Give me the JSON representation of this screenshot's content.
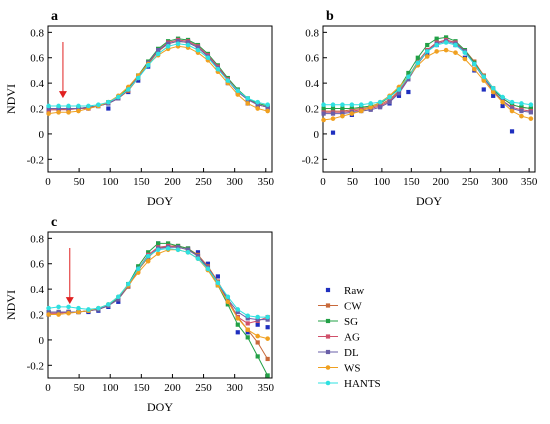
{
  "chart_data": [
    {
      "type": "line",
      "panel": "a",
      "xlabel": "DOY",
      "ylabel": "NDVI",
      "xlim": [
        0,
        360
      ],
      "ylim": [
        -0.3,
        0.85
      ],
      "xticks": [
        0,
        50,
        100,
        150,
        200,
        250,
        300,
        350
      ],
      "yticks": [
        -0.2,
        0,
        0.2,
        0.4,
        0.6,
        0.8
      ],
      "ytick_labels": [
        "-0.2",
        "0",
        "0.2",
        "0.4",
        "0.6",
        "0.8"
      ],
      "arrow_x": 24,
      "x": [
        1,
        17,
        33,
        49,
        65,
        81,
        97,
        113,
        129,
        145,
        161,
        177,
        193,
        209,
        225,
        241,
        257,
        273,
        289,
        305,
        321,
        337,
        353
      ],
      "series": [
        {
          "name": "Raw",
          "color": "#1f2fbf",
          "marker": "square",
          "line": false,
          "values": [
            0.18,
            0.2,
            0.19,
            0.21,
            0.2,
            0.22,
            0.2,
            0.28,
            0.33,
            0.42,
            0.53,
            0.65,
            0.71,
            0.74,
            0.73,
            0.69,
            0.62,
            0.52,
            0.4,
            0.32,
            0.24,
            0.22,
            0.2
          ]
        },
        {
          "name": "CW",
          "color": "#c8693a",
          "marker": "square",
          "line": true,
          "values": [
            0.19,
            0.19,
            0.2,
            0.2,
            0.21,
            0.22,
            0.24,
            0.28,
            0.34,
            0.44,
            0.55,
            0.65,
            0.71,
            0.73,
            0.72,
            0.68,
            0.61,
            0.52,
            0.43,
            0.34,
            0.27,
            0.23,
            0.21
          ]
        },
        {
          "name": "SG",
          "color": "#22a046",
          "marker": "square",
          "line": true,
          "values": [
            0.2,
            0.2,
            0.2,
            0.2,
            0.21,
            0.22,
            0.25,
            0.29,
            0.36,
            0.46,
            0.57,
            0.67,
            0.73,
            0.75,
            0.74,
            0.7,
            0.63,
            0.54,
            0.44,
            0.35,
            0.28,
            0.24,
            0.22
          ]
        },
        {
          "name": "AG",
          "color": "#d0506a",
          "marker": "square",
          "line": true,
          "values": [
            0.19,
            0.19,
            0.19,
            0.2,
            0.2,
            0.22,
            0.24,
            0.28,
            0.35,
            0.45,
            0.56,
            0.66,
            0.72,
            0.74,
            0.73,
            0.69,
            0.62,
            0.53,
            0.43,
            0.34,
            0.27,
            0.23,
            0.21
          ]
        },
        {
          "name": "DL",
          "color": "#6a5fa8",
          "marker": "square",
          "line": true,
          "values": [
            0.2,
            0.2,
            0.2,
            0.2,
            0.21,
            0.22,
            0.24,
            0.28,
            0.35,
            0.45,
            0.56,
            0.66,
            0.71,
            0.73,
            0.72,
            0.68,
            0.61,
            0.52,
            0.42,
            0.33,
            0.27,
            0.23,
            0.21
          ]
        },
        {
          "name": "WS",
          "color": "#f0a020",
          "marker": "circle",
          "line": true,
          "values": [
            0.16,
            0.17,
            0.17,
            0.18,
            0.2,
            0.22,
            0.25,
            0.3,
            0.37,
            0.46,
            0.55,
            0.62,
            0.67,
            0.69,
            0.68,
            0.64,
            0.58,
            0.49,
            0.4,
            0.31,
            0.24,
            0.2,
            0.18
          ]
        },
        {
          "name": "HANTS",
          "color": "#2fe0e0",
          "marker": "circle",
          "line": true,
          "values": [
            0.22,
            0.22,
            0.22,
            0.22,
            0.22,
            0.23,
            0.25,
            0.29,
            0.35,
            0.44,
            0.54,
            0.63,
            0.69,
            0.71,
            0.7,
            0.66,
            0.6,
            0.51,
            0.42,
            0.34,
            0.28,
            0.25,
            0.23
          ]
        }
      ]
    },
    {
      "type": "line",
      "panel": "b",
      "xlabel": "DOY",
      "ylabel": "",
      "xlim": [
        0,
        360
      ],
      "ylim": [
        -0.3,
        0.85
      ],
      "xticks": [
        0,
        50,
        100,
        150,
        200,
        250,
        300,
        350
      ],
      "yticks": [
        -0.2,
        0,
        0.2,
        0.4,
        0.6,
        0.8
      ],
      "ytick_labels": [
        "-0.2",
        "0",
        "0.2",
        "0.4",
        "0.6",
        "0.8"
      ],
      "x": [
        1,
        17,
        33,
        49,
        65,
        81,
        97,
        113,
        129,
        145,
        161,
        177,
        193,
        209,
        225,
        241,
        257,
        273,
        289,
        305,
        321,
        337,
        353
      ],
      "series": [
        {
          "name": "Raw",
          "color": "#1f2fbf",
          "marker": "square",
          "line": false,
          "values": [
            0.18,
            0.01,
            0.18,
            0.15,
            0.2,
            0.2,
            0.22,
            0.24,
            0.3,
            0.33,
            0.55,
            0.62,
            0.7,
            0.73,
            0.7,
            0.6,
            0.5,
            0.35,
            0.3,
            0.22,
            0.02,
            0.2,
            0.19
          ]
        },
        {
          "name": "CW",
          "color": "#c8693a",
          "marker": "square",
          "line": true,
          "values": [
            0.18,
            0.18,
            0.18,
            0.19,
            0.2,
            0.21,
            0.23,
            0.27,
            0.34,
            0.45,
            0.57,
            0.66,
            0.72,
            0.74,
            0.72,
            0.66,
            0.57,
            0.46,
            0.36,
            0.28,
            0.23,
            0.21,
            0.2
          ]
        },
        {
          "name": "SG",
          "color": "#22a046",
          "marker": "square",
          "line": true,
          "values": [
            0.2,
            0.2,
            0.2,
            0.2,
            0.21,
            0.22,
            0.24,
            0.29,
            0.36,
            0.48,
            0.6,
            0.7,
            0.75,
            0.76,
            0.73,
            0.66,
            0.56,
            0.45,
            0.35,
            0.28,
            0.23,
            0.21,
            0.2
          ]
        },
        {
          "name": "AG",
          "color": "#d0506a",
          "marker": "square",
          "line": true,
          "values": [
            0.17,
            0.17,
            0.17,
            0.18,
            0.19,
            0.2,
            0.22,
            0.26,
            0.33,
            0.44,
            0.56,
            0.66,
            0.72,
            0.74,
            0.72,
            0.65,
            0.55,
            0.44,
            0.34,
            0.26,
            0.21,
            0.19,
            0.18
          ]
        },
        {
          "name": "DL",
          "color": "#6a5fa8",
          "marker": "square",
          "line": true,
          "values": [
            0.16,
            0.16,
            0.16,
            0.17,
            0.18,
            0.19,
            0.21,
            0.25,
            0.32,
            0.43,
            0.55,
            0.65,
            0.71,
            0.73,
            0.71,
            0.65,
            0.55,
            0.44,
            0.34,
            0.26,
            0.2,
            0.18,
            0.17
          ]
        },
        {
          "name": "WS",
          "color": "#f0a020",
          "marker": "circle",
          "line": true,
          "values": [
            0.11,
            0.12,
            0.14,
            0.16,
            0.18,
            0.21,
            0.25,
            0.3,
            0.37,
            0.45,
            0.54,
            0.61,
            0.65,
            0.66,
            0.64,
            0.59,
            0.51,
            0.42,
            0.33,
            0.25,
            0.18,
            0.14,
            0.12
          ]
        },
        {
          "name": "HANTS",
          "color": "#2fe0e0",
          "marker": "circle",
          "line": true,
          "values": [
            0.23,
            0.23,
            0.23,
            0.23,
            0.23,
            0.24,
            0.25,
            0.29,
            0.35,
            0.45,
            0.56,
            0.65,
            0.7,
            0.72,
            0.7,
            0.64,
            0.55,
            0.45,
            0.36,
            0.29,
            0.25,
            0.24,
            0.23
          ]
        }
      ]
    },
    {
      "type": "line",
      "panel": "c",
      "xlabel": "DOY",
      "ylabel": "NDVI",
      "xlim": [
        0,
        360
      ],
      "ylim": [
        -0.3,
        0.85
      ],
      "xticks": [
        0,
        50,
        100,
        150,
        200,
        250,
        300,
        350
      ],
      "yticks": [
        -0.2,
        0,
        0.2,
        0.4,
        0.6,
        0.8
      ],
      "ytick_labels": [
        "-0.2",
        "0",
        "0.2",
        "0.4",
        "0.6",
        "0.8"
      ],
      "arrow_x": 35,
      "x": [
        1,
        17,
        33,
        49,
        65,
        81,
        97,
        113,
        129,
        145,
        161,
        177,
        193,
        209,
        225,
        241,
        257,
        273,
        289,
        305,
        321,
        337,
        353
      ],
      "series": [
        {
          "name": "Raw",
          "color": "#1f2fbf",
          "marker": "square",
          "line": false,
          "values": [
            0.2,
            0.21,
            0.22,
            0.22,
            0.22,
            0.23,
            0.26,
            0.3,
            0.42,
            0.57,
            0.66,
            0.76,
            0.74,
            0.73,
            0.72,
            0.69,
            0.6,
            0.5,
            0.32,
            0.06,
            0.06,
            0.12,
            0.1
          ]
        },
        {
          "name": "CW",
          "color": "#c8693a",
          "marker": "square",
          "line": true,
          "values": [
            0.21,
            0.21,
            0.22,
            0.22,
            0.23,
            0.24,
            0.27,
            0.32,
            0.42,
            0.55,
            0.65,
            0.72,
            0.74,
            0.74,
            0.72,
            0.67,
            0.58,
            0.46,
            0.32,
            0.18,
            0.08,
            -0.02,
            -0.15
          ]
        },
        {
          "name": "SG",
          "color": "#22a046",
          "marker": "square",
          "line": true,
          "values": [
            0.22,
            0.22,
            0.22,
            0.22,
            0.23,
            0.24,
            0.27,
            0.33,
            0.44,
            0.58,
            0.69,
            0.76,
            0.76,
            0.74,
            0.72,
            0.66,
            0.56,
            0.43,
            0.28,
            0.12,
            0.02,
            -0.13,
            -0.28
          ]
        },
        {
          "name": "AG",
          "color": "#d0506a",
          "marker": "square",
          "line": true,
          "values": [
            0.21,
            0.21,
            0.22,
            0.22,
            0.23,
            0.24,
            0.27,
            0.32,
            0.43,
            0.56,
            0.67,
            0.73,
            0.74,
            0.73,
            0.71,
            0.66,
            0.57,
            0.45,
            0.31,
            0.18,
            0.13,
            0.15,
            0.18
          ]
        },
        {
          "name": "DL",
          "color": "#6a5fa8",
          "marker": "square",
          "line": true,
          "values": [
            0.22,
            0.22,
            0.22,
            0.22,
            0.23,
            0.24,
            0.27,
            0.32,
            0.43,
            0.56,
            0.66,
            0.72,
            0.73,
            0.73,
            0.71,
            0.66,
            0.57,
            0.45,
            0.32,
            0.22,
            0.17,
            0.16,
            0.16
          ]
        },
        {
          "name": "WS",
          "color": "#f0a020",
          "marker": "circle",
          "line": true,
          "values": [
            0.2,
            0.2,
            0.21,
            0.22,
            0.23,
            0.25,
            0.28,
            0.34,
            0.43,
            0.53,
            0.62,
            0.68,
            0.71,
            0.71,
            0.69,
            0.64,
            0.55,
            0.43,
            0.3,
            0.17,
            0.08,
            0.03,
            0.01
          ]
        },
        {
          "name": "HANTS",
          "color": "#2fe0e0",
          "marker": "circle",
          "line": true,
          "values": [
            0.25,
            0.26,
            0.26,
            0.25,
            0.24,
            0.25,
            0.28,
            0.34,
            0.44,
            0.56,
            0.66,
            0.71,
            0.72,
            0.71,
            0.69,
            0.64,
            0.56,
            0.45,
            0.34,
            0.24,
            0.19,
            0.18,
            0.18
          ]
        }
      ]
    }
  ],
  "legend": {
    "items": [
      {
        "name": "Raw",
        "color": "#1f2fbf",
        "marker": "square",
        "line": false
      },
      {
        "name": "CW",
        "color": "#c8693a",
        "marker": "square",
        "line": true
      },
      {
        "name": "SG",
        "color": "#22a046",
        "marker": "square",
        "line": true
      },
      {
        "name": "AG",
        "color": "#d0506a",
        "marker": "square",
        "line": true
      },
      {
        "name": "DL",
        "color": "#6a5fa8",
        "marker": "square",
        "line": true
      },
      {
        "name": "WS",
        "color": "#f0a020",
        "marker": "circle",
        "line": true
      },
      {
        "name": "HANTS",
        "color": "#2fe0e0",
        "marker": "circle",
        "line": true
      }
    ]
  },
  "arrow_color": "#e02020"
}
